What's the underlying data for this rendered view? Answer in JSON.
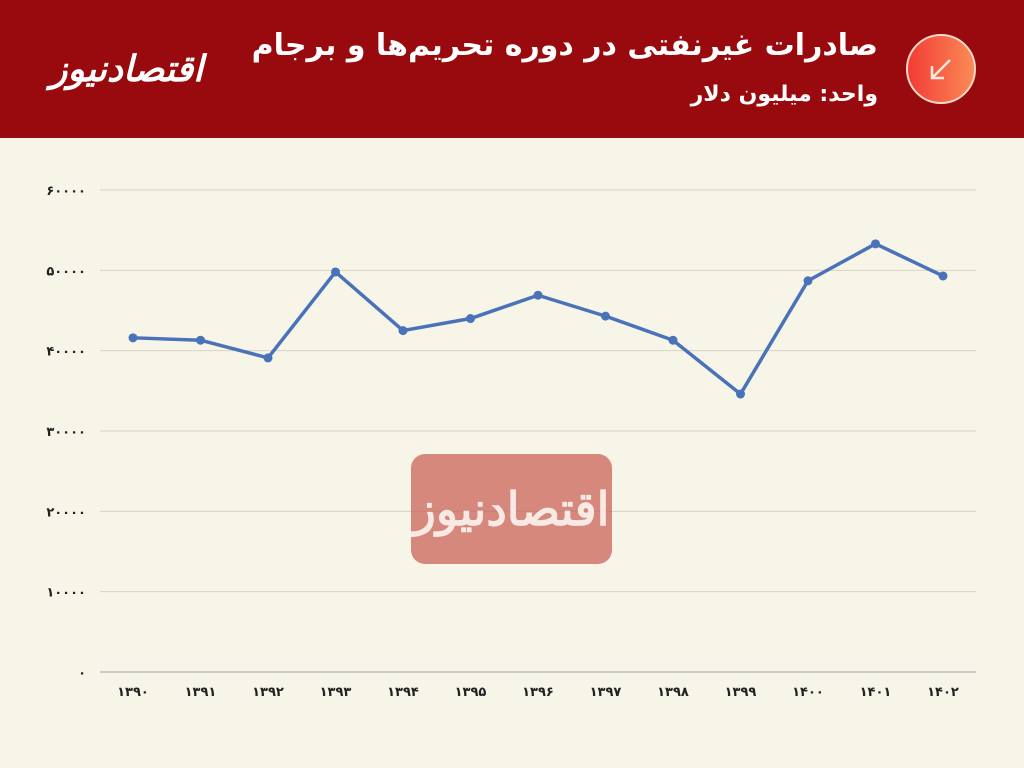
{
  "header": {
    "title": "صادرات غیرنفتی در دوره تحریم‌ها و برجام",
    "subtitle": "واحد: میلیون دلار",
    "badge_icon": "arrow-down-left-icon",
    "logo": "اقتصادنیوز"
  },
  "watermark": "اقتصادنیوز",
  "colors": {
    "header": "#990a0e",
    "background": "#f7f5e7",
    "line": "#4a72b8"
  },
  "chart_data": {
    "type": "line",
    "categories": [
      "۱۳۹۰",
      "۱۳۹۱",
      "۱۳۹۲",
      "۱۳۹۳",
      "۱۳۹۴",
      "۱۳۹۵",
      "۱۳۹۶",
      "۱۳۹۷",
      "۱۳۹۸",
      "۱۳۹۹",
      "۱۴۰۰",
      "۱۴۰۱",
      "۱۴۰۲"
    ],
    "values": [
      41600,
      41300,
      39100,
      49800,
      42500,
      44000,
      46900,
      44300,
      41300,
      34600,
      48700,
      53300,
      49300
    ],
    "ylim": [
      0,
      60000
    ],
    "yticks": [
      0,
      10000,
      20000,
      30000,
      40000,
      50000,
      60000
    ],
    "ytick_labels": [
      "۰",
      "۱۰۰۰۰",
      "۲۰۰۰۰",
      "۳۰۰۰۰",
      "۴۰۰۰۰",
      "۵۰۰۰۰",
      "۶۰۰۰۰"
    ],
    "grid": true,
    "legend": "none"
  }
}
